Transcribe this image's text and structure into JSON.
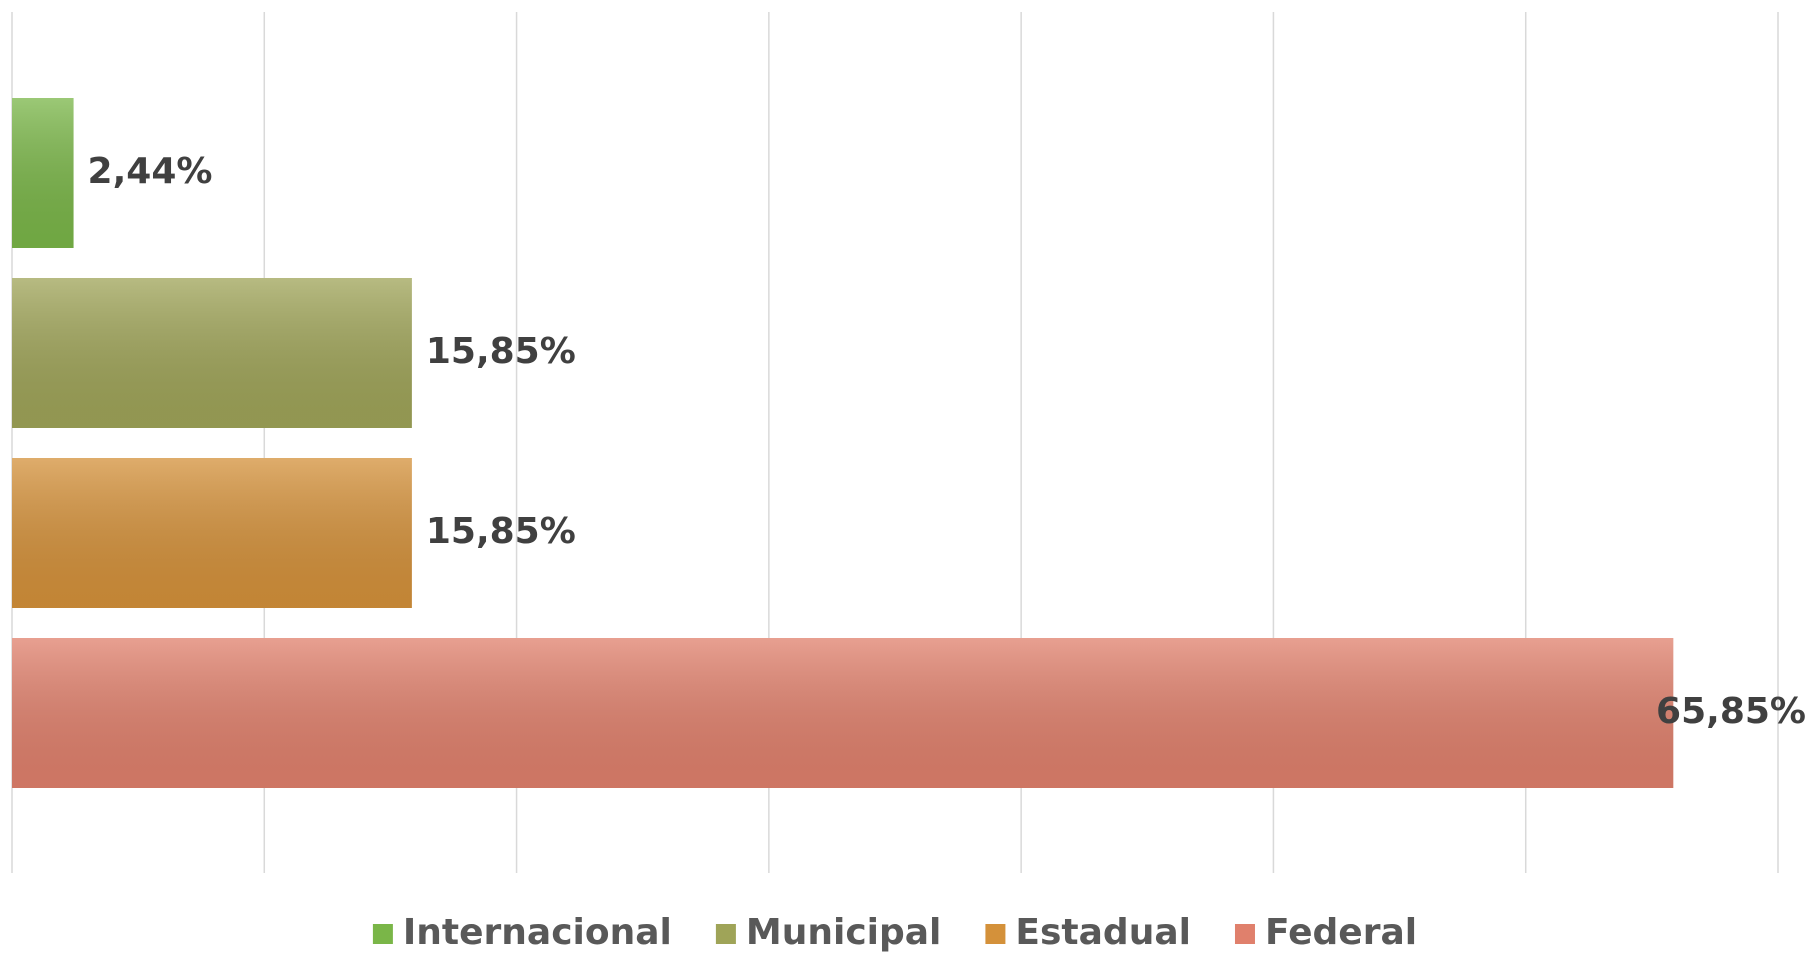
{
  "chart_data": {
    "type": "bar",
    "orientation": "horizontal",
    "series": [
      {
        "name": "Internacional",
        "color": "#7ab648",
        "values": [
          2.44
        ],
        "value_labels": [
          "2,44%"
        ]
      },
      {
        "name": "Municipal",
        "color": "#9fa458",
        "values": [
          15.85
        ],
        "value_labels": [
          "15,85%"
        ]
      },
      {
        "name": "Estadual",
        "color": "#d4913a",
        "values": [
          15.85
        ],
        "value_labels": [
          "15,85%"
        ]
      },
      {
        "name": "Federal",
        "color": "#e0806c",
        "values": [
          65.85
        ],
        "value_labels": [
          "65,85%"
        ]
      }
    ],
    "xlim": [
      0,
      70
    ],
    "xticks": [
      0,
      10,
      20,
      30,
      40,
      50,
      60,
      70
    ],
    "grid": true,
    "legend": "bottom"
  }
}
